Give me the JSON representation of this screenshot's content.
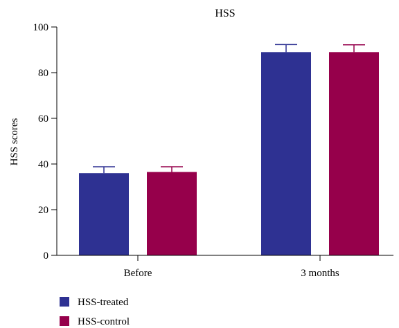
{
  "chart_data": {
    "type": "bar",
    "title": "HSS",
    "xlabel": "",
    "ylabel": "HSS scores",
    "categories": [
      "Before",
      "3 months"
    ],
    "ylim": [
      0,
      100
    ],
    "yticks": [
      0,
      20,
      40,
      60,
      80,
      100
    ],
    "series": [
      {
        "name": "HSS-treated",
        "color": "#2E3192",
        "values": [
          36,
          89
        ],
        "errors": [
          2.8,
          3.3
        ]
      },
      {
        "name": "HSS-control",
        "color": "#96004B",
        "values": [
          36.5,
          89
        ],
        "errors": [
          2.3,
          3.2
        ]
      }
    ],
    "legend_position": "bottom-left",
    "grid": false
  }
}
